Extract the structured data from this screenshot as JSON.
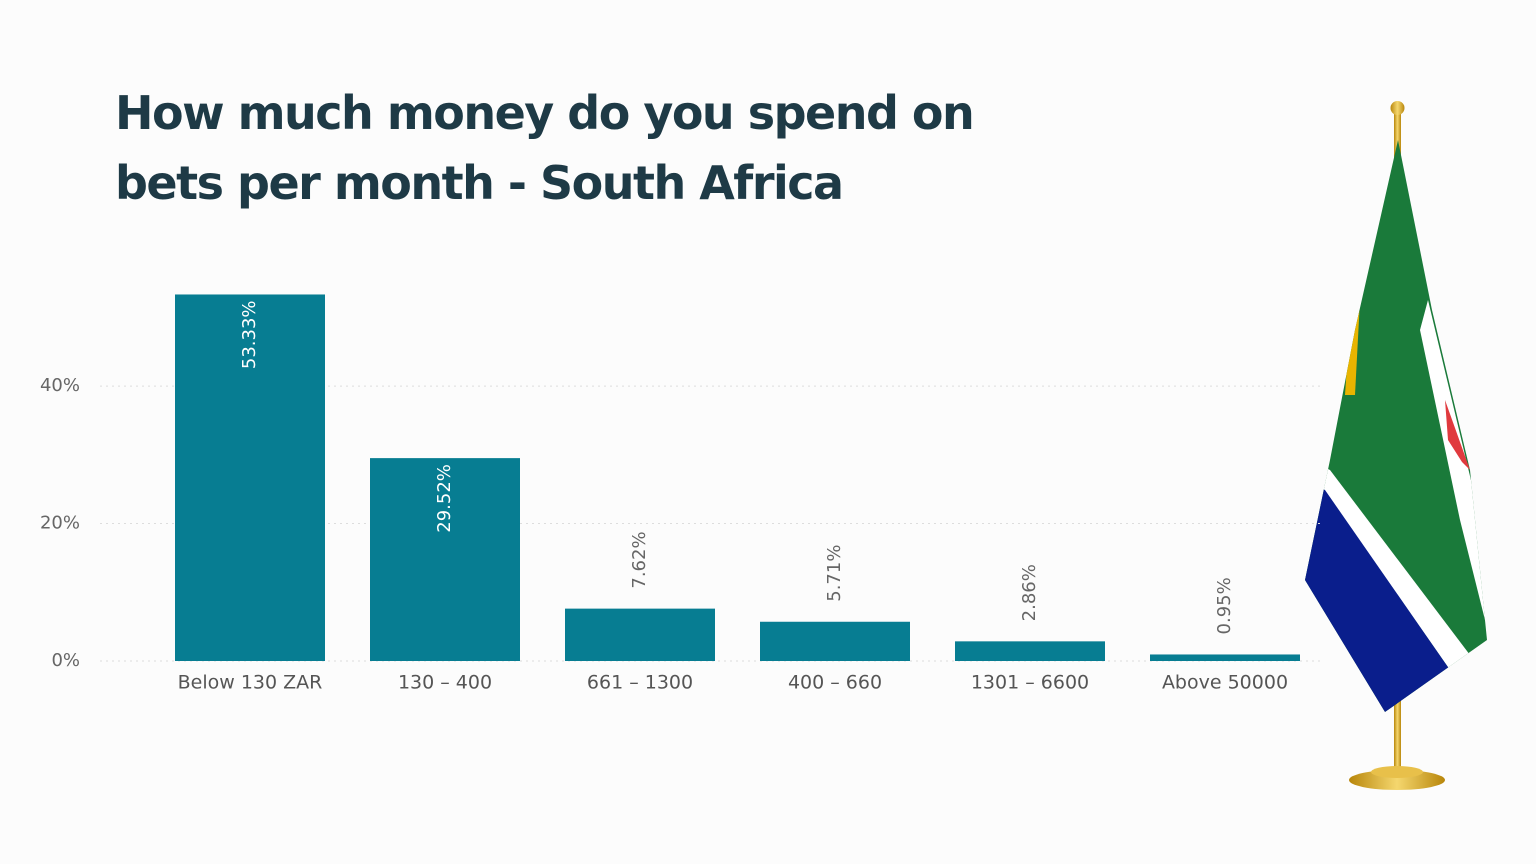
{
  "chart_data": {
    "type": "bar",
    "title": "How much money do you spend on bets per month - South Africa",
    "categories": [
      "Below 130 ZAR",
      "130 – 400",
      "661 – 1300",
      "400 – 660",
      "1301 – 6600",
      "Above 50000"
    ],
    "values": [
      53.33,
      29.52,
      7.62,
      5.71,
      2.86,
      0.95
    ],
    "value_labels": [
      "53.33%",
      "29.52%",
      "7.62%",
      "5.71%",
      "2.86%",
      "0.95%"
    ],
    "color": "#077d92",
    "ylim": [
      0,
      55
    ],
    "yticks": [
      {
        "value": 0,
        "label": "0%"
      },
      {
        "value": 20,
        "label": "20%"
      },
      {
        "value": 40,
        "label": "40%"
      }
    ],
    "grid": true
  }
}
